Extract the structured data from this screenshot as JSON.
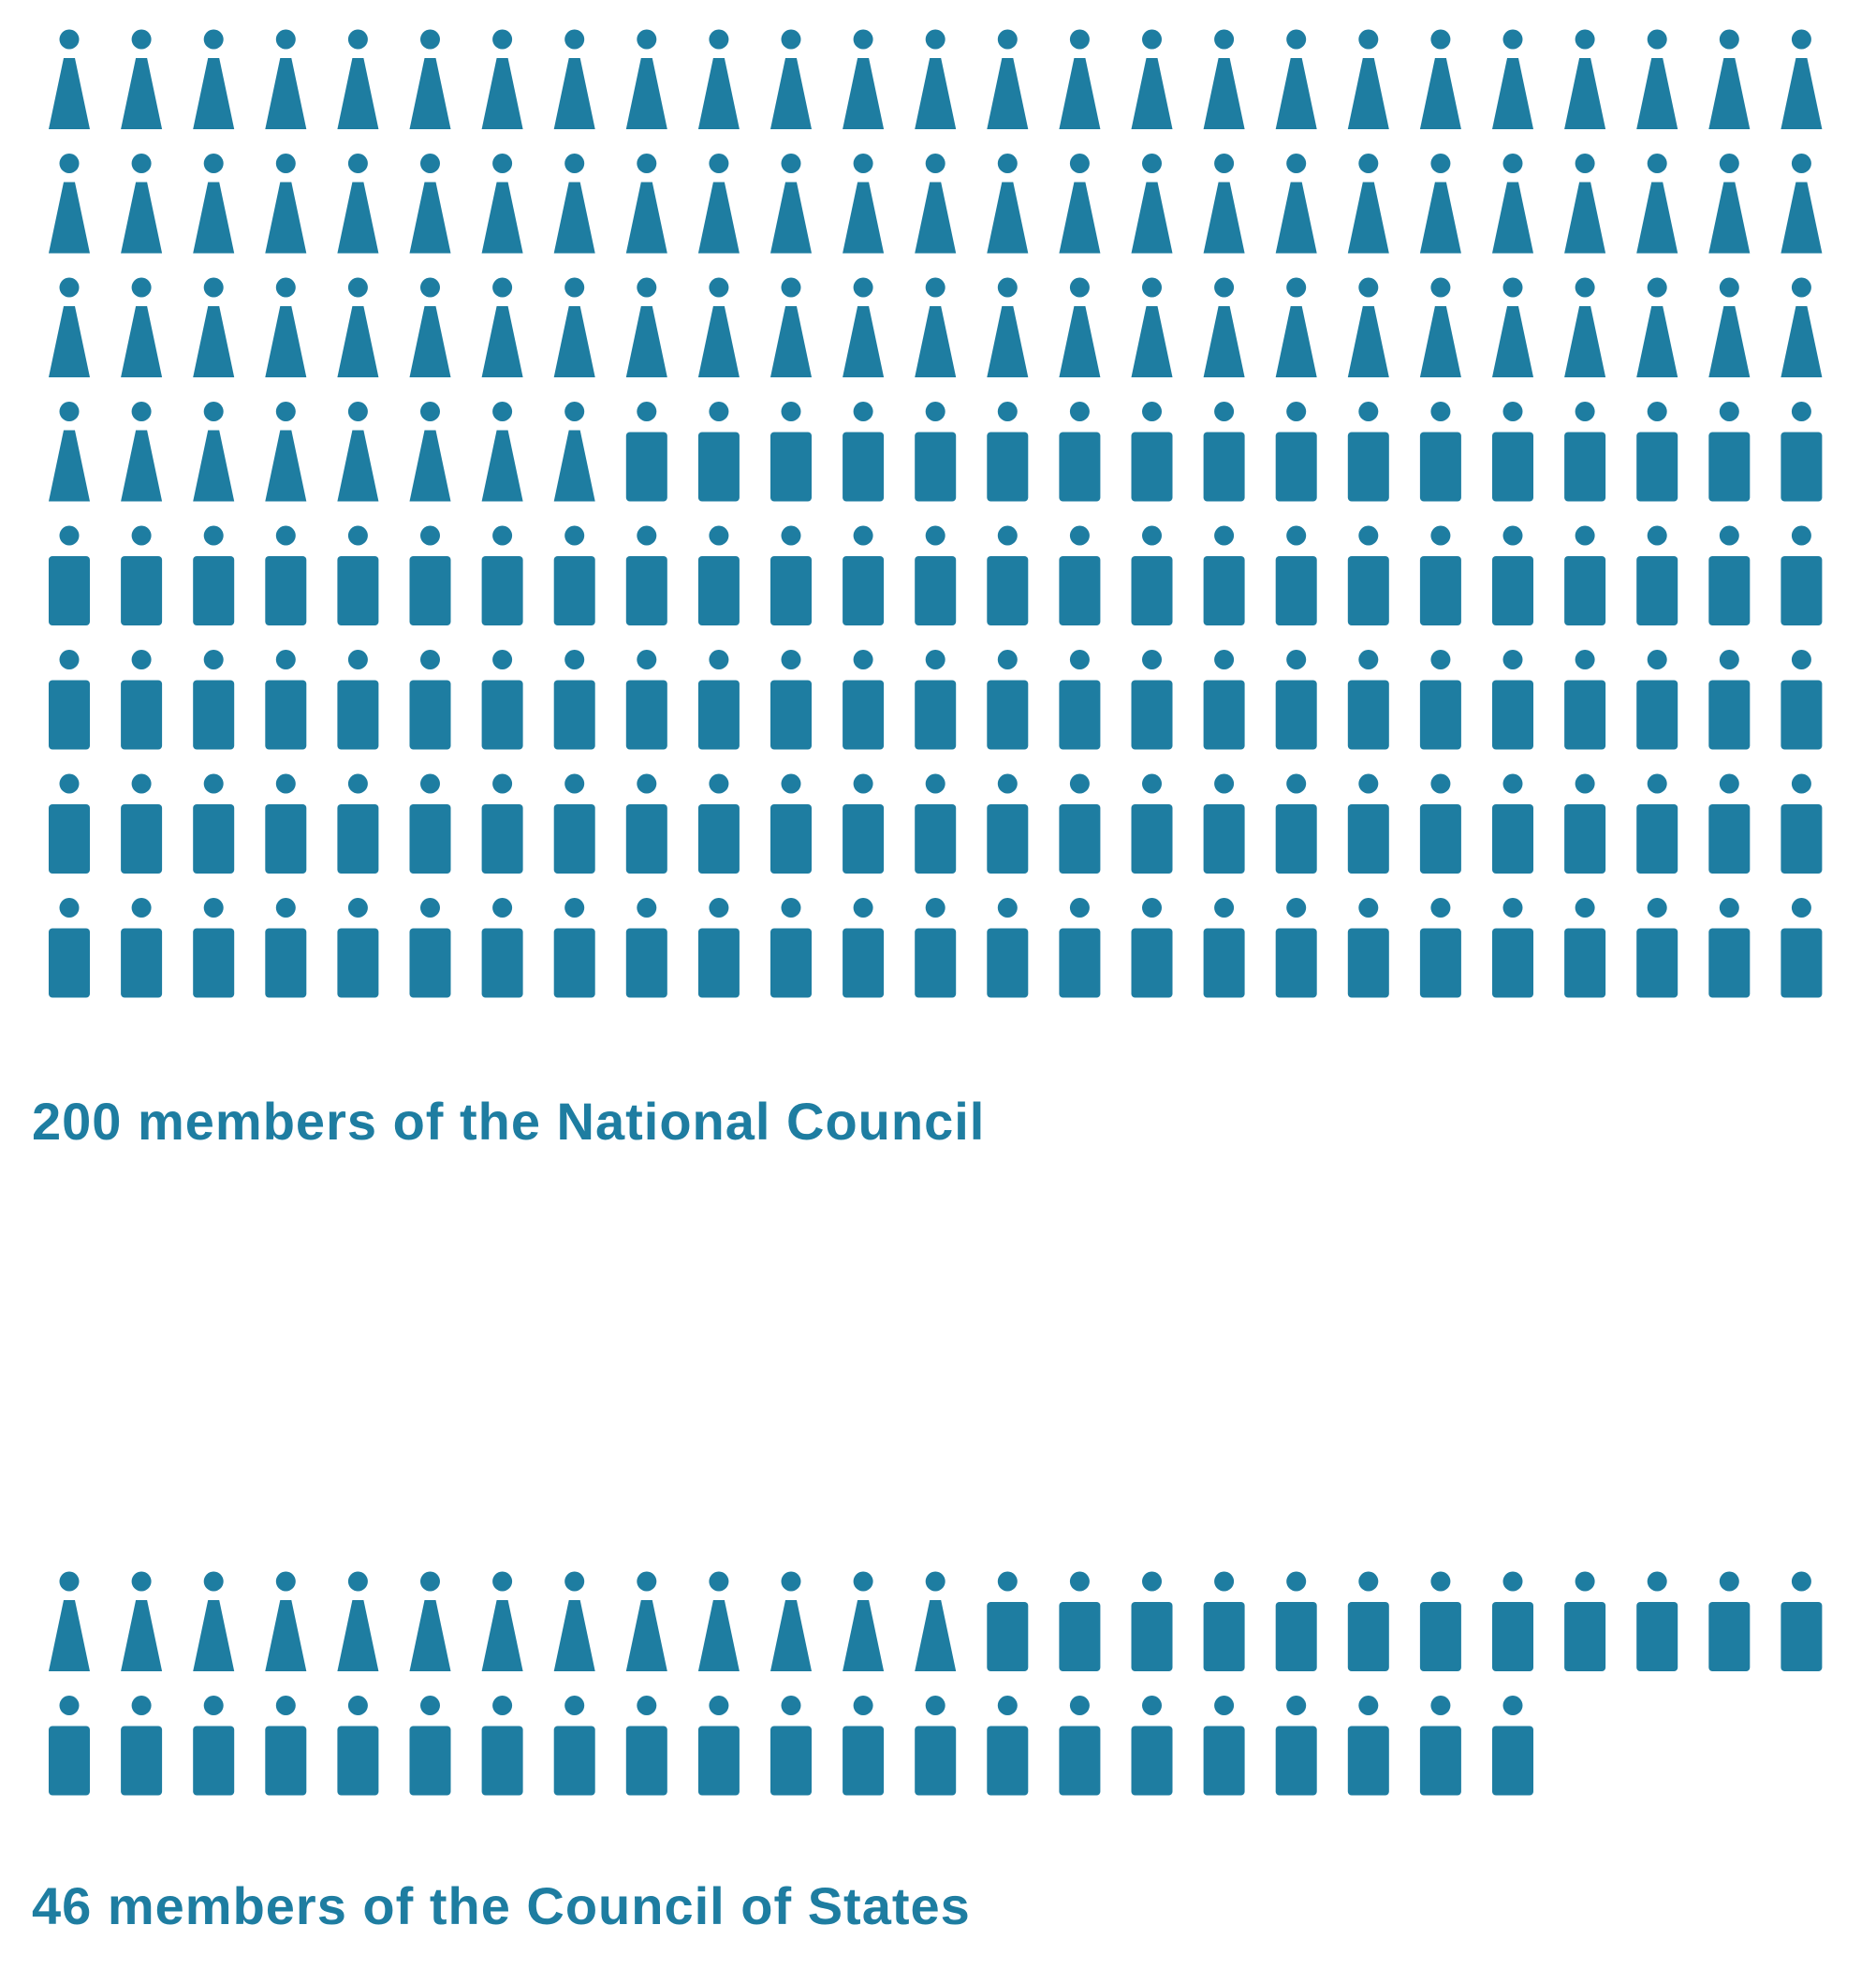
{
  "colors": {
    "figure": "#1e7da1",
    "background": "#ffffff"
  },
  "chart_data": {
    "type": "pictogram",
    "icon_types": [
      "female-figure-icon",
      "male-figure-icon"
    ],
    "groups": [
      {
        "label": "200 members of the National Council",
        "total": 200,
        "per_row": 25,
        "composition": [
          {
            "icon": "female-figure-icon",
            "count": 83
          },
          {
            "icon": "male-figure-icon",
            "count": 117
          }
        ]
      },
      {
        "label": "46 members of the Council of States",
        "total": 46,
        "per_row": 25,
        "composition": [
          {
            "icon": "female-figure-icon",
            "count": 13
          },
          {
            "icon": "male-figure-icon",
            "count": 33
          }
        ]
      }
    ]
  }
}
